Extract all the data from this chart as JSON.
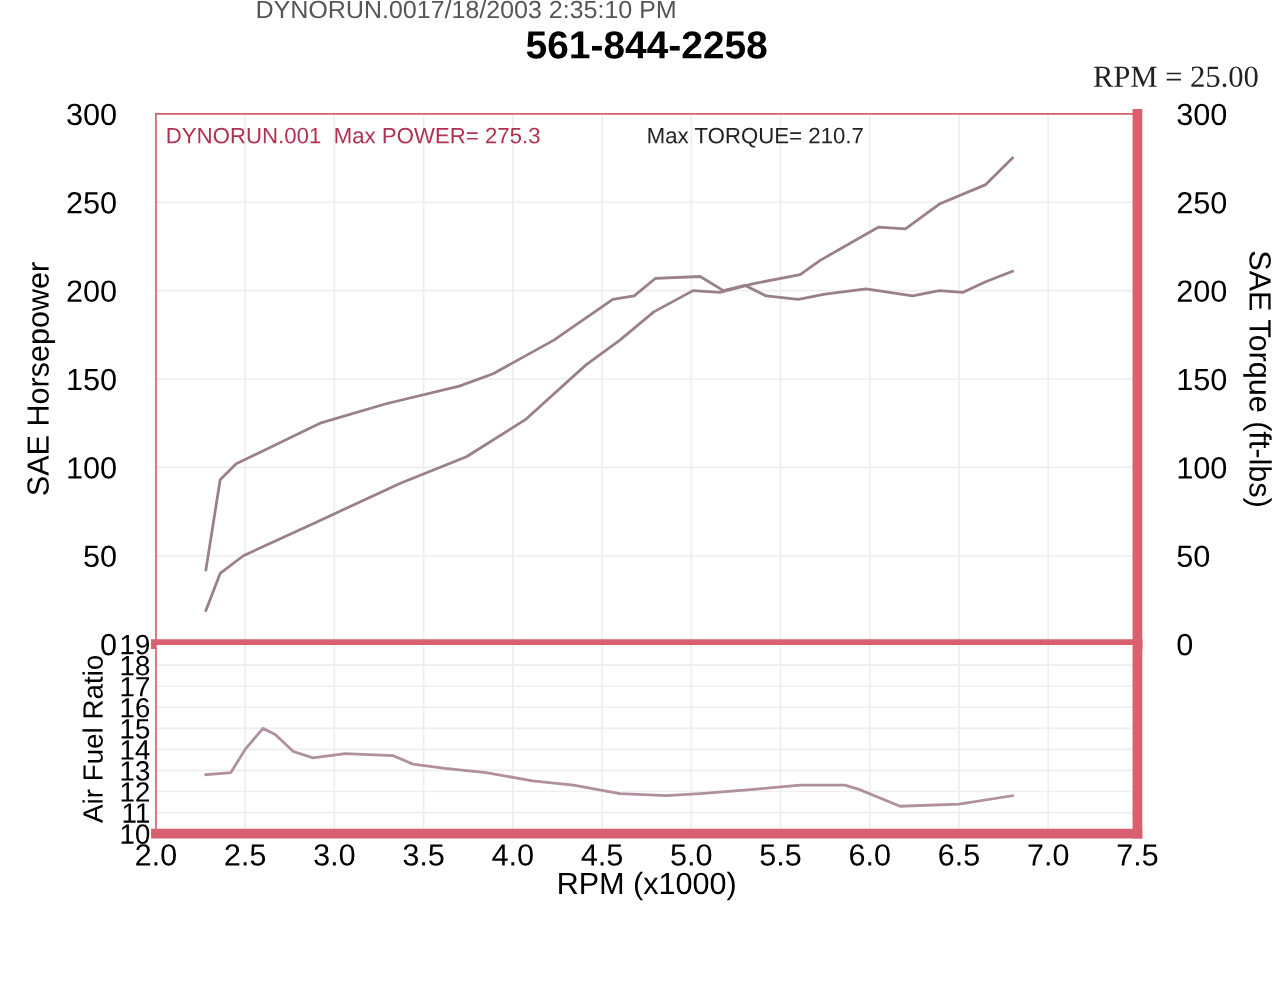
{
  "chart_data": [
    {
      "type": "line",
      "title": "561-844-2258",
      "ylabel": "SAE Horsepower",
      "y2label": "SAE Torque (ft-lbs)",
      "annotations": [
        "DYNORUN.0017/18/2003 2:35:10 PM",
        "RPM = 25.00",
        "DYNORUN.001  Max POWER= 275.3",
        "Max TORQUE= 210.7"
      ],
      "xlim": [
        2.0,
        7.5
      ],
      "xticks": [
        2,
        2.5,
        3,
        3.5,
        4,
        4.5,
        5,
        5.5,
        6,
        6.5,
        7,
        7.5
      ],
      "ylim": [
        0,
        300
      ],
      "yticks": [
        0,
        50,
        100,
        150,
        200,
        250,
        300
      ],
      "y2lim": [
        0,
        300
      ],
      "y2ticks": [
        0,
        50,
        100,
        150,
        200,
        250,
        300
      ],
      "tick_labels": "y",
      "grid": true,
      "marker": "none",
      "line_style": "solid",
      "series": [
        {
          "color": "#9a8088",
          "x": [
            2.28,
            2.36,
            2.49,
            2.92,
            3.37,
            3.74,
            4.07,
            4.41,
            4.6,
            4.79,
            5.01,
            5.16,
            5.35,
            5.61,
            5.72,
            6.05,
            6.2,
            6.39,
            6.65,
            6.8
          ],
          "values": [
            19,
            40,
            50,
            70,
            91,
            106,
            127,
            158,
            172,
            188,
            200,
            199,
            204,
            209,
            217,
            236,
            235,
            249,
            260,
            275
          ]
        },
        {
          "color": "#9a8088",
          "x": [
            2.28,
            2.36,
            2.45,
            2.92,
            3.29,
            3.7,
            3.89,
            4.23,
            4.56,
            4.68,
            4.8,
            5.05,
            5.18,
            5.3,
            5.42,
            5.6,
            5.75,
            5.98,
            6.24,
            6.39,
            6.52,
            6.65,
            6.8
          ],
          "values": [
            42,
            93,
            102,
            125,
            136,
            146,
            153,
            172,
            195,
            197,
            207,
            208,
            200,
            203,
            197,
            195,
            198,
            201,
            197,
            200,
            199,
            205,
            211
          ]
        }
      ]
    },
    {
      "type": "line",
      "xlabel": "RPM (x1000)",
      "ylabel": "Air Fuel Ratio",
      "xlim": [
        2.0,
        7.5
      ],
      "xticks": [
        {
          "value": 2,
          "label": "2.0"
        },
        2.5,
        {
          "value": 3,
          "label": "3.0"
        },
        3.5,
        {
          "value": 4,
          "label": "4.0"
        },
        4.5,
        {
          "value": 5,
          "label": "5.0"
        },
        5.5,
        {
          "value": 6,
          "label": "6.0"
        },
        6.5,
        {
          "value": 7,
          "label": "7.0"
        },
        7.5
      ],
      "ylim": [
        10,
        19
      ],
      "yticks": [
        10,
        11,
        12,
        13,
        14,
        15,
        16,
        17,
        18,
        19
      ],
      "grid": true,
      "marker": "none",
      "line_style": "solid",
      "series": [
        {
          "color": "#b090a0",
          "x": [
            2.28,
            2.42,
            2.5,
            2.6,
            2.67,
            2.77,
            2.88,
            3.06,
            3.33,
            3.44,
            3.62,
            3.85,
            4.11,
            4.34,
            4.6,
            4.86,
            5.05,
            5.35,
            5.61,
            5.86,
            5.94,
            6.17,
            6.5,
            6.8
          ],
          "values": [
            12.8,
            12.9,
            14.0,
            15.0,
            14.7,
            13.9,
            13.6,
            13.8,
            13.7,
            13.3,
            13.1,
            12.9,
            12.5,
            12.3,
            11.9,
            11.8,
            11.9,
            12.1,
            12.3,
            12.3,
            12.1,
            11.3,
            11.4,
            11.8
          ]
        }
      ]
    }
  ]
}
